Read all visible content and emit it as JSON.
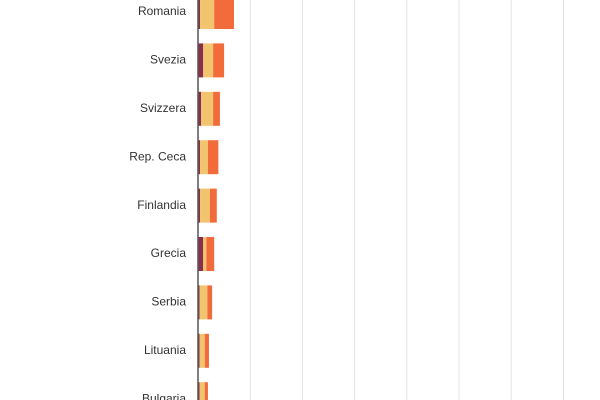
{
  "chart_data": {
    "type": "stacked-bar-horizontal",
    "categories": [
      "Romania",
      "Svezia",
      "Svizzera",
      "Rep. Ceca",
      "Finlandia",
      "Grecia",
      "Serbia",
      "Lituania",
      "Bulgaria"
    ],
    "series": [
      {
        "color": "#8a2f4a",
        "values": [
          0.4,
          1.0,
          0.6,
          0.4,
          0.4,
          1.0,
          0.3,
          0.3,
          0.3
        ]
      },
      {
        "color": "#f2c46d",
        "values": [
          2.7,
          1.9,
          2.3,
          1.5,
          1.9,
          0.6,
          1.5,
          1.0,
          1.0
        ]
      },
      {
        "color": "#f26b3a",
        "values": [
          3.8,
          2.1,
          1.3,
          2.0,
          1.3,
          1.5,
          0.9,
          0.8,
          0.6
        ]
      }
    ],
    "xlim": [
      0,
      77
    ],
    "xgrid": [
      10,
      20,
      30,
      40,
      50,
      60,
      70
    ]
  }
}
